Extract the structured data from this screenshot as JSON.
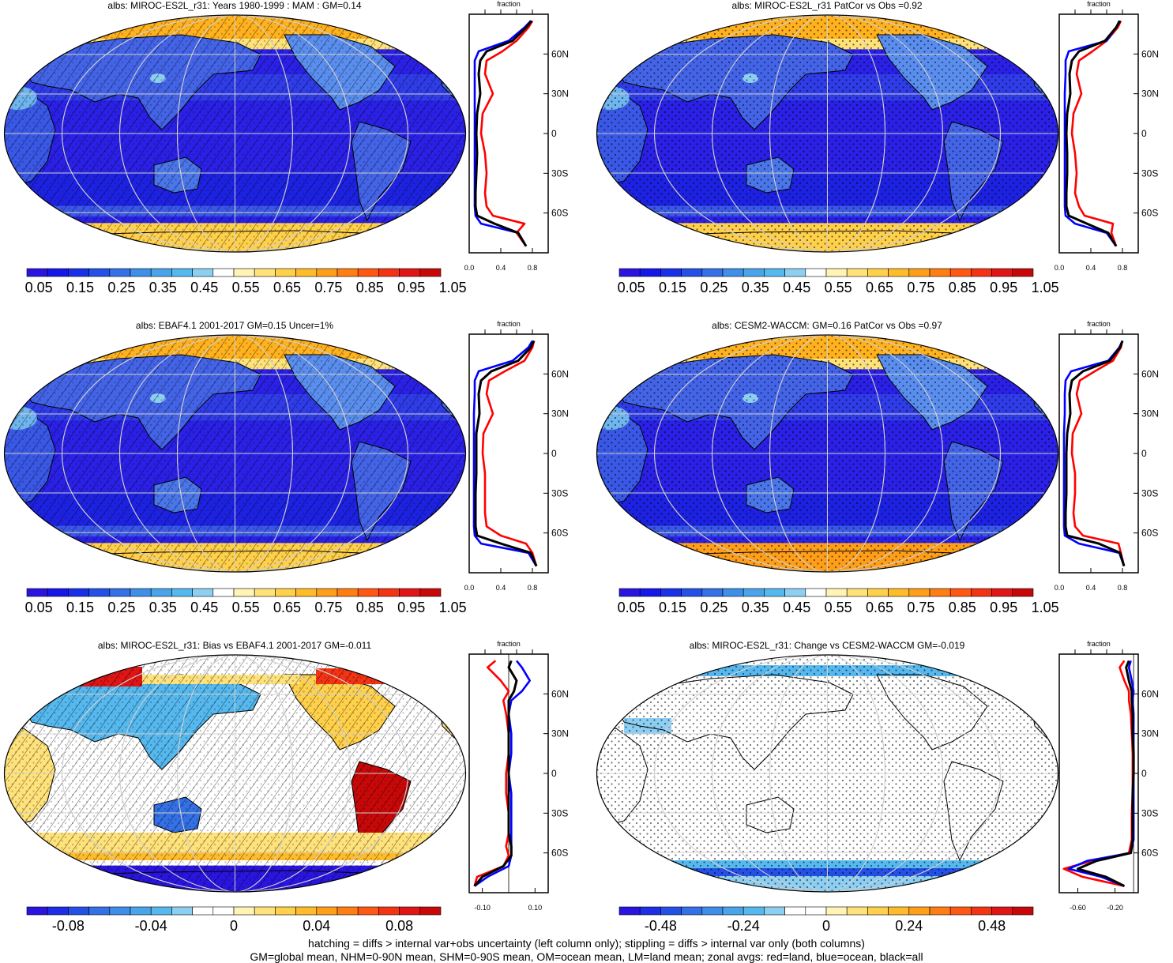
{
  "colors": {
    "abs_scale": [
      "#2a15e0",
      "#1616e8",
      "#1830e8",
      "#2550e6",
      "#3470e6",
      "#3f8ee8",
      "#4aa4ea",
      "#55b8ee",
      "#8ccff3",
      "#ffffff",
      "#fff3b5",
      "#ffe27a",
      "#ffd04a",
      "#ffbc2a",
      "#ff9f19",
      "#ff7d13",
      "#ff5812",
      "#f43314",
      "#e01515",
      "#c80808"
    ],
    "diff_scale": [
      "#2a15e0",
      "#1d2ee6",
      "#2550e6",
      "#3470e6",
      "#3f8ee8",
      "#4aa4ea",
      "#55b8ee",
      "#8ccff3",
      "#ffffff",
      "#ffffff",
      "#fff3b5",
      "#ffe27a",
      "#ffd04a",
      "#ffbc2a",
      "#ff9f19",
      "#ff7d13",
      "#ff5812",
      "#f43314",
      "#e01515",
      "#c80808"
    ],
    "land": "#ff0000",
    "ocean": "#0000ff",
    "all": "#000000",
    "ocean_fill": "#2a20e6",
    "grid": "#cfcfcf"
  },
  "icons": {
    "map": "robinson-world-map-icon",
    "hatching": "diagonal-hatching-pattern",
    "stippling": "stipple-dots-pattern"
  },
  "panels": [
    {
      "id": "miroc-mam",
      "title": "albs: MIROC-ES2L_r31: Years 1980-1999 : MAM : GM=0.14",
      "kind": "abs",
      "overlay": "hatch",
      "zonal_title": "fraction",
      "zonal_ticks": [
        "0.0",
        "0.4",
        "0.8"
      ],
      "lat_labels": [
        "60N",
        "30N",
        "0",
        "30S",
        "60S"
      ],
      "colorbar_labels": [
        "0.05",
        "0.15",
        "0.25",
        "0.35",
        "0.45",
        "0.55",
        "0.65",
        "0.75",
        "0.85",
        "0.95",
        "1.05"
      ]
    },
    {
      "id": "miroc-patcor",
      "title": "albs: MIROC-ES2L_r31 PatCor vs Obs =0.92",
      "kind": "abs",
      "overlay": "stipple",
      "zonal_title": "fraction",
      "zonal_ticks": [
        "0.0",
        "0.4",
        "0.8"
      ],
      "lat_labels": [
        "60N",
        "30N",
        "0",
        "30S",
        "60S"
      ],
      "colorbar_labels": [
        "0.05",
        "0.15",
        "0.25",
        "0.35",
        "0.45",
        "0.55",
        "0.65",
        "0.75",
        "0.85",
        "0.95",
        "1.05"
      ]
    },
    {
      "id": "ebaf",
      "title": "albs: EBAF4.1 2001-2017 GM=0.15 Uncer=1%",
      "kind": "abs",
      "overlay": "hatch",
      "zonal_title": "fraction",
      "zonal_ticks": [
        "0.0",
        "0.4",
        "0.8"
      ],
      "lat_labels": [
        "60N",
        "30N",
        "0",
        "30S",
        "60S"
      ],
      "colorbar_labels": [
        "0.05",
        "0.15",
        "0.25",
        "0.35",
        "0.45",
        "0.55",
        "0.65",
        "0.75",
        "0.85",
        "0.95",
        "1.05"
      ]
    },
    {
      "id": "cesm2",
      "title": "albs: CESM2-WACCM: GM=0.16 PatCor vs Obs =0.97",
      "kind": "abs",
      "overlay": "stipple",
      "zonal_title": "fraction",
      "zonal_ticks": [
        "0.0",
        "0.4",
        "0.8"
      ],
      "lat_labels": [
        "60N",
        "30N",
        "0",
        "30S",
        "60S"
      ],
      "colorbar_labels": [
        "0.05",
        "0.15",
        "0.25",
        "0.35",
        "0.45",
        "0.55",
        "0.65",
        "0.75",
        "0.85",
        "0.95",
        "1.05"
      ]
    },
    {
      "id": "bias",
      "title": "albs: MIROC-ES2L_r31: Bias vs EBAF4.1 2001-2017 GM=-0.011",
      "kind": "bias",
      "overlay": "hatch",
      "zonal_title": "fraction",
      "zonal_ticks": [
        "-0.10",
        "0.10"
      ],
      "lat_labels": [
        "60N",
        "30N",
        "0",
        "30S",
        "60S"
      ],
      "colorbar_labels": [
        "-0.08",
        "-0.04",
        "0",
        "0.04",
        "0.08"
      ]
    },
    {
      "id": "change",
      "title": "albs: MIROC-ES2L_r31: Change vs CESM2-WACCM GM=-0.019",
      "kind": "change",
      "overlay": "stipple",
      "zonal_title": "fraction",
      "zonal_ticks": [
        "-0.60",
        "-0.20"
      ],
      "lat_labels": [
        "60N",
        "30N",
        "0",
        "30S",
        "60S"
      ],
      "colorbar_labels": [
        "-0.48",
        "-0.24",
        "0",
        "0.24",
        "0.48"
      ]
    }
  ],
  "footer": {
    "line1": "hatching = diffs > internal var+obs uncertainty (left column only); stippling = diffs > internal var only (both columns)",
    "line2": "GM=global mean, NHM=0-90N mean, SHM=0-90S mean, OM=ocean mean, LM=land mean; zonal avgs: red=land, blue=ocean, black=all"
  },
  "chart_data": [
    {
      "type": "line",
      "panel": "miroc-mam",
      "title": "albs: MIROC-ES2L_r31: Years 1980-1999 : MAM : GM=0.14",
      "xlabel": "fraction",
      "ylabel": "",
      "xlim": [
        0,
        1.0
      ],
      "ylim": [
        -90,
        90
      ],
      "y": [
        -85,
        -75,
        -68,
        -62,
        -55,
        -45,
        -30,
        -15,
        0,
        15,
        30,
        45,
        55,
        62,
        70,
        80,
        85
      ],
      "series": [
        {
          "name": "red=land",
          "values": [
            0.72,
            0.6,
            0.7,
            0.3,
            0.22,
            0.2,
            0.22,
            0.2,
            0.15,
            0.17,
            0.3,
            0.2,
            0.22,
            0.42,
            0.6,
            0.75,
            0.8
          ]
        },
        {
          "name": "blue=ocean",
          "values": [
            0.72,
            0.62,
            0.15,
            0.08,
            0.07,
            0.07,
            0.07,
            0.07,
            0.07,
            0.07,
            0.07,
            0.07,
            0.07,
            0.12,
            0.5,
            0.7,
            0.78
          ]
        },
        {
          "name": "black=all",
          "values": [
            0.72,
            0.62,
            0.32,
            0.1,
            0.08,
            0.08,
            0.09,
            0.1,
            0.09,
            0.1,
            0.14,
            0.12,
            0.14,
            0.22,
            0.55,
            0.72,
            0.79
          ]
        }
      ]
    },
    {
      "type": "line",
      "panel": "miroc-patcor",
      "title": "albs: MIROC-ES2L_r31 PatCor vs Obs =0.92",
      "xlabel": "fraction",
      "ylabel": "",
      "xlim": [
        0,
        1.0
      ],
      "ylim": [
        -90,
        90
      ],
      "y": [
        -85,
        -75,
        -68,
        -62,
        -55,
        -45,
        -30,
        -15,
        0,
        15,
        30,
        45,
        55,
        62,
        70,
        80,
        85
      ],
      "series": [
        {
          "name": "red=land",
          "values": [
            0.72,
            0.66,
            0.68,
            0.32,
            0.25,
            0.2,
            0.22,
            0.2,
            0.16,
            0.18,
            0.28,
            0.22,
            0.25,
            0.42,
            0.6,
            0.74,
            0.78
          ]
        },
        {
          "name": "blue=ocean",
          "values": [
            0.72,
            0.6,
            0.2,
            0.08,
            0.07,
            0.07,
            0.07,
            0.07,
            0.07,
            0.07,
            0.07,
            0.08,
            0.08,
            0.12,
            0.6,
            0.72,
            0.76
          ]
        },
        {
          "name": "black=all",
          "values": [
            0.72,
            0.62,
            0.35,
            0.12,
            0.09,
            0.09,
            0.1,
            0.1,
            0.09,
            0.1,
            0.14,
            0.13,
            0.16,
            0.25,
            0.58,
            0.72,
            0.77
          ]
        }
      ]
    },
    {
      "type": "line",
      "panel": "ebaf",
      "title": "albs: EBAF4.1 2001-2017 GM=0.15 Uncer=1%",
      "xlabel": "fraction",
      "ylabel": "",
      "xlim": [
        0,
        1.0
      ],
      "ylim": [
        -90,
        90
      ],
      "y": [
        -85,
        -75,
        -68,
        -62,
        -55,
        -45,
        -30,
        -15,
        0,
        15,
        30,
        45,
        55,
        62,
        70,
        80,
        85
      ],
      "series": [
        {
          "name": "red=land",
          "values": [
            0.85,
            0.8,
            0.72,
            0.4,
            0.22,
            0.2,
            0.2,
            0.2,
            0.17,
            0.18,
            0.3,
            0.22,
            0.25,
            0.45,
            0.7,
            0.8,
            0.82
          ]
        },
        {
          "name": "blue=ocean",
          "values": [
            0.85,
            0.75,
            0.15,
            0.07,
            0.06,
            0.06,
            0.06,
            0.06,
            0.06,
            0.06,
            0.06,
            0.07,
            0.07,
            0.12,
            0.55,
            0.75,
            0.8
          ]
        },
        {
          "name": "black=all",
          "values": [
            0.85,
            0.78,
            0.4,
            0.1,
            0.08,
            0.08,
            0.08,
            0.09,
            0.09,
            0.09,
            0.13,
            0.12,
            0.15,
            0.28,
            0.62,
            0.78,
            0.82
          ]
        }
      ]
    },
    {
      "type": "line",
      "panel": "cesm2",
      "title": "albs: CESM2-WACCM: GM=0.16 PatCor vs Obs =0.97",
      "xlabel": "fraction",
      "ylabel": "",
      "xlim": [
        0,
        1.0
      ],
      "ylim": [
        -90,
        90
      ],
      "y": [
        -85,
        -75,
        -68,
        -62,
        -55,
        -45,
        -30,
        -15,
        0,
        15,
        30,
        45,
        55,
        62,
        70,
        80,
        85
      ],
      "series": [
        {
          "name": "red=land",
          "values": [
            0.82,
            0.78,
            0.75,
            0.3,
            0.2,
            0.18,
            0.2,
            0.2,
            0.16,
            0.17,
            0.28,
            0.22,
            0.26,
            0.45,
            0.68,
            0.78,
            0.8
          ]
        },
        {
          "name": "blue=ocean",
          "values": [
            0.82,
            0.76,
            0.25,
            0.07,
            0.06,
            0.06,
            0.06,
            0.06,
            0.06,
            0.06,
            0.07,
            0.07,
            0.08,
            0.15,
            0.62,
            0.76,
            0.8
          ]
        },
        {
          "name": "black=all",
          "values": [
            0.82,
            0.77,
            0.5,
            0.1,
            0.08,
            0.08,
            0.09,
            0.09,
            0.09,
            0.1,
            0.14,
            0.13,
            0.16,
            0.3,
            0.64,
            0.77,
            0.8
          ]
        }
      ]
    },
    {
      "type": "line",
      "panel": "bias",
      "title": "albs: MIROC-ES2L_r31: Bias vs EBAF4.1 2001-2017 GM=-0.011",
      "xlabel": "fraction",
      "ylabel": "",
      "xlim": [
        -0.15,
        0.15
      ],
      "ylim": [
        -90,
        90
      ],
      "y": [
        -85,
        -78,
        -70,
        -62,
        -55,
        -45,
        -30,
        -15,
        0,
        15,
        30,
        45,
        55,
        62,
        70,
        80,
        85
      ],
      "series": [
        {
          "name": "red=land",
          "values": [
            -0.13,
            -0.12,
            -0.02,
            0.0,
            -0.01,
            0.0,
            0.0,
            -0.01,
            -0.01,
            0.0,
            0.0,
            -0.01,
            -0.02,
            0.0,
            -0.03,
            -0.08,
            -0.05
          ]
        },
        {
          "name": "blue=ocean",
          "values": [
            -0.13,
            -0.08,
            0.0,
            0.01,
            0.01,
            0.01,
            0.01,
            0.01,
            0.0,
            0.01,
            0.01,
            0.0,
            0.01,
            0.05,
            0.08,
            0.05,
            0.03
          ]
        },
        {
          "name": "black=all",
          "values": [
            -0.13,
            -0.1,
            -0.02,
            0.01,
            0.01,
            0.0,
            0.0,
            0.0,
            0.0,
            0.0,
            0.0,
            0.0,
            0.0,
            0.02,
            0.03,
            0.0,
            0.01
          ]
        }
      ]
    },
    {
      "type": "line",
      "panel": "change",
      "title": "albs: MIROC-ES2L_r31: Change vs CESM2-WACCM GM=-0.019",
      "xlabel": "fraction",
      "ylabel": "",
      "xlim": [
        -0.8,
        0.05
      ],
      "ylim": [
        -90,
        90
      ],
      "y": [
        -85,
        -78,
        -72,
        -66,
        -60,
        -50,
        -30,
        -15,
        0,
        15,
        30,
        45,
        55,
        62,
        70,
        80,
        85
      ],
      "series": [
        {
          "name": "red=land",
          "values": [
            -0.1,
            -0.55,
            -0.75,
            -0.45,
            -0.05,
            -0.02,
            -0.02,
            -0.01,
            -0.01,
            -0.01,
            -0.02,
            -0.03,
            -0.05,
            -0.05,
            -0.1,
            -0.15,
            -0.1
          ]
        },
        {
          "name": "blue=ocean",
          "values": [
            -0.1,
            -0.35,
            -0.7,
            -0.5,
            -0.03,
            0.0,
            0.0,
            0.0,
            0.0,
            0.0,
            0.0,
            0.0,
            -0.01,
            0.0,
            -0.02,
            -0.05,
            -0.03
          ]
        },
        {
          "name": "black=all",
          "values": [
            -0.1,
            -0.3,
            -0.6,
            -0.4,
            -0.03,
            -0.01,
            -0.01,
            -0.01,
            0.0,
            0.0,
            -0.01,
            -0.01,
            -0.02,
            -0.02,
            -0.05,
            -0.08,
            -0.05
          ]
        }
      ]
    }
  ]
}
